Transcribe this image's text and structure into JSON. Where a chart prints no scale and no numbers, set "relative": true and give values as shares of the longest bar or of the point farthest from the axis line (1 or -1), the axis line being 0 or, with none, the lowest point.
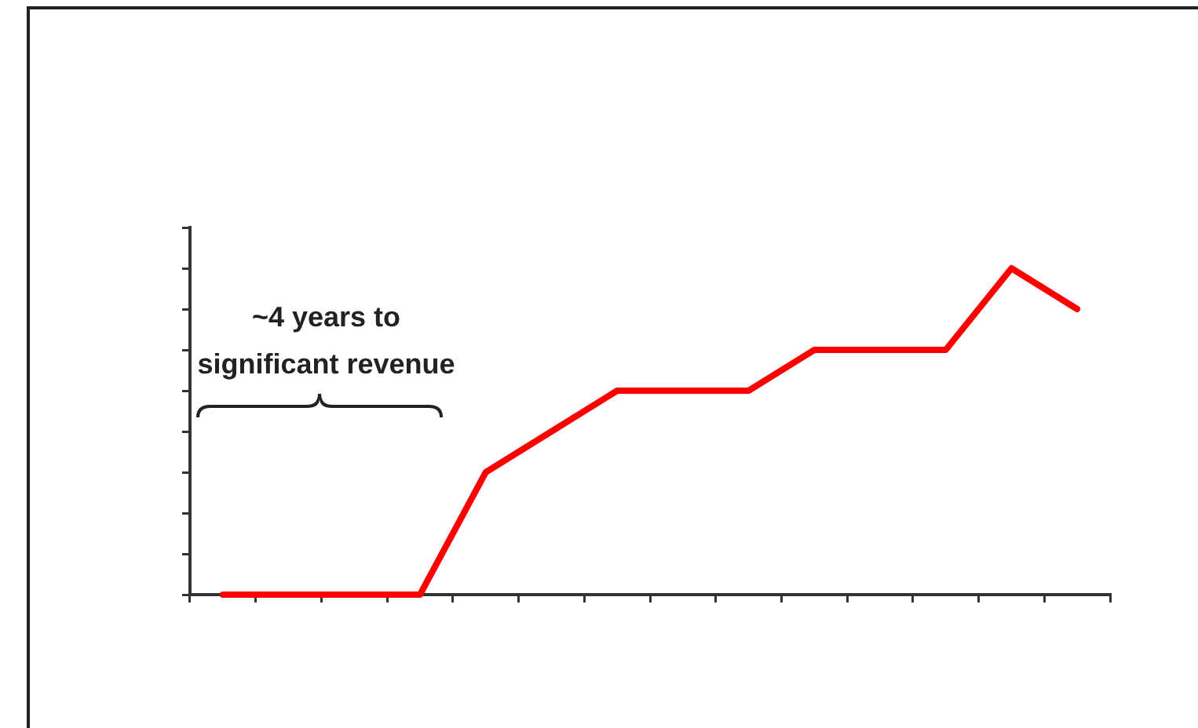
{
  "chart_data": {
    "type": "line",
    "relative": true,
    "tick_labels": false,
    "marker": "none",
    "line_style": "solid",
    "categories": [
      null,
      null,
      null,
      null,
      null,
      null,
      null,
      null,
      null,
      null,
      null,
      null,
      null,
      null
    ],
    "series": [
      {
        "color": "#ff0000",
        "values": [
          0,
          0,
          0,
          0,
          0.375,
          0.5,
          0.625,
          0.625,
          0.625,
          0.75,
          0.75,
          0.75,
          1,
          0.875
        ]
      }
    ],
    "annotations": [
      "~4 years to significant revenue"
    ]
  }
}
